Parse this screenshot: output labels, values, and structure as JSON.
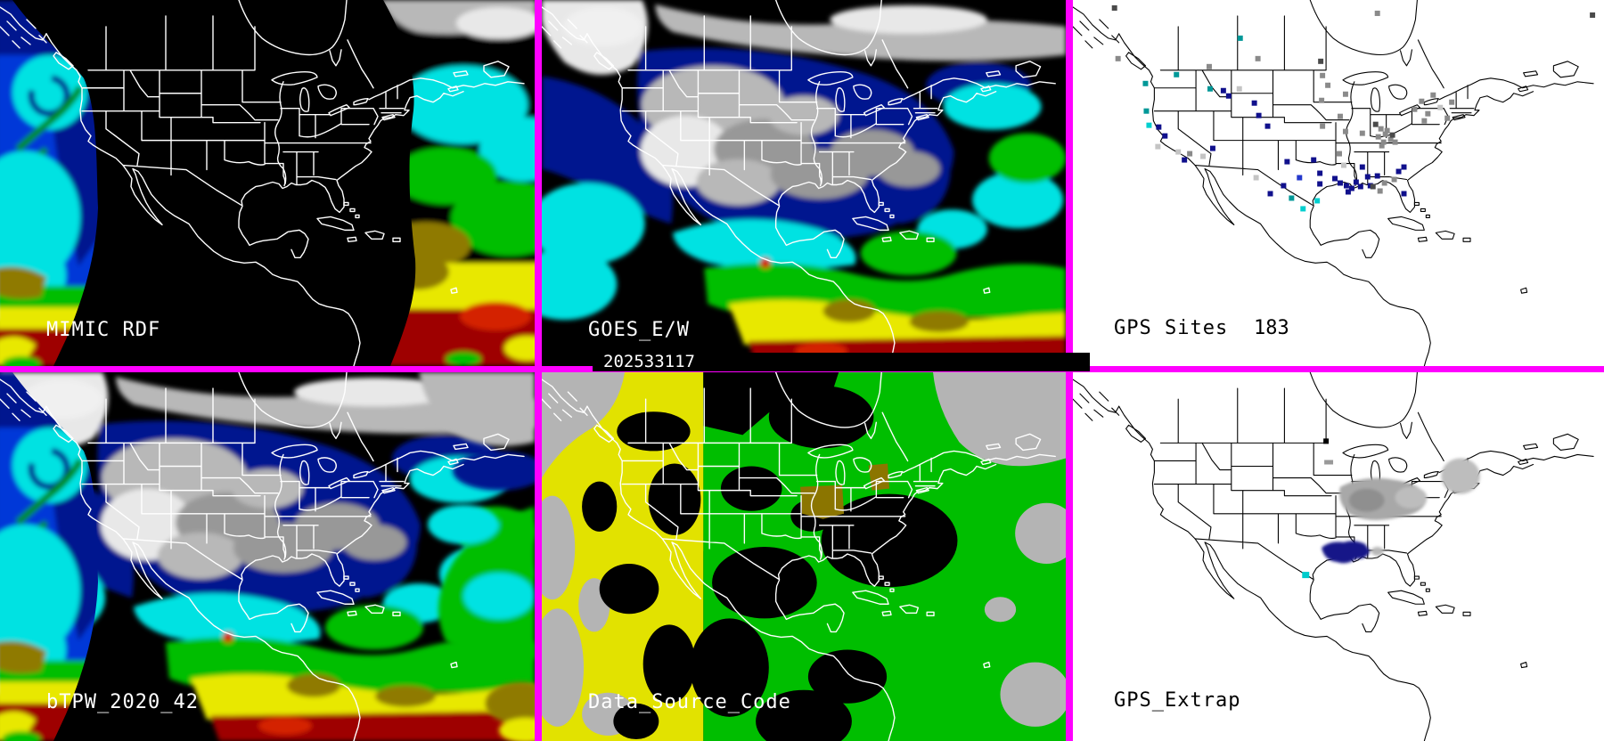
{
  "colors": {
    "magenta": "#ff00ff",
    "c-white": "#ffffff",
    "c-navy": "#00128f",
    "c-blue": "#0038d8",
    "c-cyan": "#00e2e2",
    "c-green": "#00be00",
    "c-dgreen": "#008f00",
    "c-olive": "#8f7a00",
    "c-yellow": "#e8e800",
    "c-dred": "#9e0000",
    "c-red": "#d42000",
    "c-gray1": "#e8e8e8",
    "c-gray2": "#b8b8b8",
    "c-gray3": "#989898",
    "dsc-yellow": "#e2e200",
    "dsc-green": "#00be00",
    "dsc-gray": "#b4b4b4",
    "dsc-olive": "#8b7500",
    "ex-navy": "#141488",
    "ex-gray": "#a8a8a8",
    "ex-cyan": "#00cccc"
  },
  "panels": {
    "mimic": {
      "label": "MIMIC RDF"
    },
    "goes": {
      "label": "GOES_E/W"
    },
    "gps_sites": {
      "label": "GPS Sites",
      "count": "183"
    },
    "btpw": {
      "label": "bTPW_2020_42"
    },
    "data_source": {
      "label": "Data_Source_Code"
    },
    "gps_extrap": {
      "label": "GPS_Extrap"
    }
  },
  "timestamp": "202533117",
  "gps_dots": {
    "dot_size": 6,
    "palette": {
      "n": "#10108c",
      "b": "#2438cc",
      "g": "#8a8a8a",
      "G": "#4a4a4a",
      "l": "#c4c4c4",
      "t": "#009898",
      "c": "#00cfcf"
    },
    "points": [
      [
        44,
        6,
        "G"
      ],
      [
        341,
        12,
        "g"
      ],
      [
        584,
        14,
        "G"
      ],
      [
        48,
        63,
        "g"
      ],
      [
        206,
        63,
        "g"
      ],
      [
        151,
        72,
        "g"
      ],
      [
        277,
        66,
        "G"
      ],
      [
        186,
        40,
        "t"
      ],
      [
        114,
        81,
        "t"
      ],
      [
        79,
        91,
        "t"
      ],
      [
        152,
        97,
        "t"
      ],
      [
        167,
        99,
        "n"
      ],
      [
        185,
        97,
        "l"
      ],
      [
        173,
        105,
        "n"
      ],
      [
        279,
        82,
        "g"
      ],
      [
        285,
        93,
        "g"
      ],
      [
        278,
        110,
        "g"
      ],
      [
        305,
        103,
        "g"
      ],
      [
        202,
        113,
        "n"
      ],
      [
        207,
        127,
        "n"
      ],
      [
        80,
        122,
        "t"
      ],
      [
        83,
        138,
        "c"
      ],
      [
        94,
        140,
        "n"
      ],
      [
        101,
        150,
        "n"
      ],
      [
        217,
        139,
        "n"
      ],
      [
        155,
        164,
        "n"
      ],
      [
        279,
        139,
        "g"
      ],
      [
        299,
        128,
        "g"
      ],
      [
        305,
        145,
        "g"
      ],
      [
        324,
        147,
        "g"
      ],
      [
        339,
        137,
        "G"
      ],
      [
        345,
        142,
        "g"
      ],
      [
        350,
        148,
        "g"
      ],
      [
        356,
        154,
        "g"
      ],
      [
        348,
        157,
        "g"
      ],
      [
        342,
        151,
        "g"
      ],
      [
        352,
        144,
        "g"
      ],
      [
        358,
        149,
        "G"
      ],
      [
        346,
        161,
        "g"
      ],
      [
        361,
        157,
        "g"
      ],
      [
        93,
        162,
        "l"
      ],
      [
        116,
        168,
        "l"
      ],
      [
        123,
        177,
        "n"
      ],
      [
        129,
        170,
        "g"
      ],
      [
        144,
        173,
        "l"
      ],
      [
        204,
        197,
        "l"
      ],
      [
        239,
        179,
        "n"
      ],
      [
        269,
        177,
        "n"
      ],
      [
        298,
        170,
        "g"
      ],
      [
        303,
        183,
        "l"
      ],
      [
        324,
        185,
        "n"
      ],
      [
        341,
        195,
        "n"
      ],
      [
        253,
        197,
        "b"
      ],
      [
        276,
        192,
        "n"
      ],
      [
        235,
        206,
        "n"
      ],
      [
        276,
        204,
        "n"
      ],
      [
        293,
        198,
        "n"
      ],
      [
        299,
        203,
        "n"
      ],
      [
        306,
        206,
        "n"
      ],
      [
        312,
        209,
        "n"
      ],
      [
        317,
        202,
        "n"
      ],
      [
        322,
        207,
        "n"
      ],
      [
        308,
        213,
        "n"
      ],
      [
        330,
        196,
        "n"
      ],
      [
        333,
        206,
        "n"
      ],
      [
        220,
        215,
        "n"
      ],
      [
        244,
        220,
        "t"
      ],
      [
        273,
        223,
        "c"
      ],
      [
        257,
        232,
        "c"
      ],
      [
        336,
        207,
        "G"
      ],
      [
        344,
        212,
        "g"
      ],
      [
        349,
        203,
        "g"
      ],
      [
        360,
        199,
        "g"
      ],
      [
        365,
        190,
        "n"
      ],
      [
        371,
        185,
        "n"
      ],
      [
        383,
        120,
        "g"
      ],
      [
        391,
        111,
        "g"
      ],
      [
        398,
        125,
        "g"
      ],
      [
        404,
        104,
        "g"
      ],
      [
        412,
        118,
        "l"
      ],
      [
        394,
        133,
        "g"
      ],
      [
        420,
        130,
        "g"
      ],
      [
        425,
        112,
        "g"
      ],
      [
        371,
        215,
        "n"
      ]
    ]
  }
}
